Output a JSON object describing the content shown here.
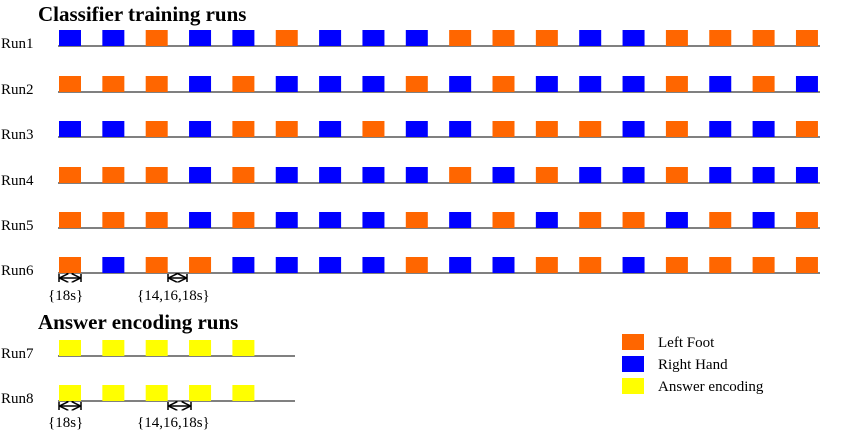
{
  "sections": [
    {
      "title": "Classifier training runs",
      "runs": [
        {
          "label": "Run1",
          "blocks": [
            "#0000ff",
            "#0000ff",
            "#ff6600",
            "#0000ff",
            "#0000ff",
            "#ff6600",
            "#0000ff",
            "#0000ff",
            "#0000ff",
            "#ff6600",
            "#ff6600",
            "#ff6600",
            "#0000ff",
            "#0000ff",
            "#ff6600",
            "#ff6600",
            "#ff6600",
            "#ff6600"
          ]
        },
        {
          "label": "Run2",
          "blocks": [
            "#ff6600",
            "#ff6600",
            "#ff6600",
            "#0000ff",
            "#ff6600",
            "#0000ff",
            "#0000ff",
            "#0000ff",
            "#ff6600",
            "#0000ff",
            "#ff6600",
            "#0000ff",
            "#0000ff",
            "#0000ff",
            "#ff6600",
            "#0000ff",
            "#ff6600",
            "#0000ff"
          ]
        },
        {
          "label": "Run3",
          "blocks": [
            "#0000ff",
            "#0000ff",
            "#ff6600",
            "#0000ff",
            "#ff6600",
            "#ff6600",
            "#0000ff",
            "#ff6600",
            "#0000ff",
            "#0000ff",
            "#ff6600",
            "#ff6600",
            "#ff6600",
            "#0000ff",
            "#ff6600",
            "#0000ff",
            "#0000ff",
            "#ff6600"
          ]
        },
        {
          "label": "Run4",
          "blocks": [
            "#ff6600",
            "#ff6600",
            "#ff6600",
            "#0000ff",
            "#ff6600",
            "#0000ff",
            "#0000ff",
            "#0000ff",
            "#0000ff",
            "#ff6600",
            "#0000ff",
            "#ff6600",
            "#0000ff",
            "#0000ff",
            "#ff6600",
            "#0000ff",
            "#0000ff",
            "#0000ff"
          ]
        },
        {
          "label": "Run5",
          "blocks": [
            "#ff6600",
            "#ff6600",
            "#ff6600",
            "#0000ff",
            "#ff6600",
            "#0000ff",
            "#0000ff",
            "#0000ff",
            "#ff6600",
            "#0000ff",
            "#ff6600",
            "#0000ff",
            "#ff6600",
            "#ff6600",
            "#0000ff",
            "#ff6600",
            "#0000ff",
            "#ff6600"
          ]
        },
        {
          "label": "Run6",
          "blocks": [
            "#ff6600",
            "#0000ff",
            "#ff6600",
            "#ff6600",
            "#0000ff",
            "#0000ff",
            "#0000ff",
            "#0000ff",
            "#ff6600",
            "#0000ff",
            "#0000ff",
            "#ff6600",
            "#ff6600",
            "#0000ff",
            "#ff6600",
            "#ff6600",
            "#ff6600",
            "#ff6600"
          ]
        }
      ],
      "annotations": [
        "{18s}",
        "{14,16,18s}"
      ]
    },
    {
      "title": "Answer encoding runs",
      "runs": [
        {
          "label": "Run7",
          "blocks": [
            "#ffff00",
            "#ffff00",
            "#ffff00",
            "#ffff00",
            "#ffff00"
          ]
        },
        {
          "label": "Run8",
          "blocks": [
            "#ffff00",
            "#ffff00",
            "#ffff00",
            "#ffff00",
            "#ffff00"
          ]
        }
      ],
      "annotations": [
        "{18s}",
        "{14,16,18s}"
      ]
    }
  ],
  "legend": [
    {
      "label": "Left Foot",
      "color": "#ff6600"
    },
    {
      "label": "Right Hand",
      "color": "#0000ff"
    },
    {
      "label": "Answer encoding",
      "color": "#ffff00"
    }
  ]
}
